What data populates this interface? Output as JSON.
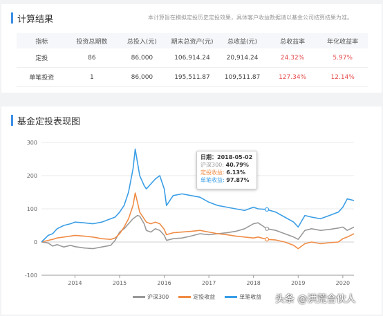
{
  "results": {
    "title": "计算结果",
    "disclaimer": "本计算旨在模拟定投历史定投效果，具体客户收益数据请以基金公司结算结果为准。",
    "columns": [
      "指标",
      "投资总期数",
      "总投入(元)",
      "期末总资产(元)",
      "总收益(元)",
      "总收益率",
      "年化收益率"
    ],
    "rows": [
      [
        "定投",
        "86",
        "86,000",
        "106,914.24",
        "20,914.24",
        "24.32%",
        "5.97%"
      ],
      [
        "单笔投资",
        "1",
        "86,000",
        "195,511.87",
        "109,511.87",
        "127.34%",
        "12.14%"
      ]
    ]
  },
  "chart_section": {
    "title": "基金定投表现图"
  },
  "tooltip": {
    "date_label": "日期：",
    "date": "2018-05-02",
    "items": [
      {
        "label": "沪深300:",
        "value": "40.79%",
        "color": "#999999"
      },
      {
        "label": "定投收益:",
        "value": "6.13%",
        "color": "#f08c46"
      },
      {
        "label": "单笔收益:",
        "value": "97.87%",
        "color": "#3a9ee6"
      }
    ]
  },
  "legend": [
    {
      "name": "沪深300",
      "color": "#999999"
    },
    {
      "name": "定投收益",
      "color": "#f08c46"
    },
    {
      "name": "单笔收益",
      "color": "#3a9ee6"
    }
  ],
  "watermark": "头条 @洪荒合伙人",
  "chart_data": {
    "type": "line",
    "title": "基金定投表现图",
    "xlabel": "",
    "ylabel": "",
    "xlim": [
      2013.25,
      2020.25
    ],
    "ylim": [
      -100,
      300
    ],
    "yticks": [
      -100,
      0,
      100,
      200,
      300
    ],
    "xticks": [
      "2014",
      "2015",
      "2016",
      "2017",
      "2018",
      "2019",
      "2020"
    ],
    "xtick_values": [
      2014,
      2015,
      2016,
      2017,
      2018,
      2019,
      2020
    ],
    "grid": "horizontal",
    "legend_position": "bottom",
    "series": [
      {
        "name": "沪深300",
        "color": "#999999",
        "points": [
          [
            2013.25,
            0
          ],
          [
            2013.4,
            -3
          ],
          [
            2013.5,
            -12
          ],
          [
            2013.6,
            -8
          ],
          [
            2013.75,
            -15
          ],
          [
            2013.9,
            -10
          ],
          [
            2014.0,
            -14
          ],
          [
            2014.2,
            -18
          ],
          [
            2014.4,
            -20
          ],
          [
            2014.6,
            -15
          ],
          [
            2014.8,
            -10
          ],
          [
            2014.9,
            5
          ],
          [
            2015.0,
            30
          ],
          [
            2015.1,
            40
          ],
          [
            2015.2,
            55
          ],
          [
            2015.3,
            70
          ],
          [
            2015.4,
            80
          ],
          [
            2015.45,
            78
          ],
          [
            2015.55,
            55
          ],
          [
            2015.6,
            35
          ],
          [
            2015.7,
            30
          ],
          [
            2015.8,
            40
          ],
          [
            2015.9,
            35
          ],
          [
            2016.0,
            20
          ],
          [
            2016.05,
            5
          ],
          [
            2016.2,
            10
          ],
          [
            2016.4,
            12
          ],
          [
            2016.6,
            18
          ],
          [
            2016.8,
            25
          ],
          [
            2017.0,
            22
          ],
          [
            2017.2,
            25
          ],
          [
            2017.4,
            28
          ],
          [
            2017.6,
            32
          ],
          [
            2017.8,
            40
          ],
          [
            2018.0,
            55
          ],
          [
            2018.1,
            58
          ],
          [
            2018.3,
            40
          ],
          [
            2018.5,
            35
          ],
          [
            2018.7,
            25
          ],
          [
            2018.9,
            15
          ],
          [
            2019.0,
            8
          ],
          [
            2019.15,
            35
          ],
          [
            2019.3,
            40
          ],
          [
            2019.5,
            35
          ],
          [
            2019.7,
            38
          ],
          [
            2019.9,
            42
          ],
          [
            2020.0,
            45
          ],
          [
            2020.1,
            35
          ],
          [
            2020.25,
            45
          ]
        ]
      },
      {
        "name": "定投收益",
        "color": "#f08c46",
        "points": [
          [
            2013.25,
            0
          ],
          [
            2013.4,
            5
          ],
          [
            2013.5,
            8
          ],
          [
            2013.6,
            12
          ],
          [
            2013.75,
            15
          ],
          [
            2013.9,
            18
          ],
          [
            2014.0,
            20
          ],
          [
            2014.2,
            18
          ],
          [
            2014.4,
            15
          ],
          [
            2014.6,
            10
          ],
          [
            2014.8,
            8
          ],
          [
            2014.9,
            12
          ],
          [
            2015.0,
            25
          ],
          [
            2015.1,
            45
          ],
          [
            2015.2,
            70
          ],
          [
            2015.3,
            110
          ],
          [
            2015.35,
            148
          ],
          [
            2015.4,
            120
          ],
          [
            2015.45,
            90
          ],
          [
            2015.55,
            70
          ],
          [
            2015.6,
            60
          ],
          [
            2015.7,
            55
          ],
          [
            2015.8,
            60
          ],
          [
            2015.9,
            55
          ],
          [
            2016.0,
            38
          ],
          [
            2016.05,
            22
          ],
          [
            2016.2,
            28
          ],
          [
            2016.4,
            30
          ],
          [
            2016.6,
            32
          ],
          [
            2016.8,
            35
          ],
          [
            2017.0,
            30
          ],
          [
            2017.2,
            25
          ],
          [
            2017.4,
            22
          ],
          [
            2017.6,
            18
          ],
          [
            2017.8,
            15
          ],
          [
            2018.0,
            12
          ],
          [
            2018.1,
            15
          ],
          [
            2018.3,
            8
          ],
          [
            2018.5,
            6
          ],
          [
            2018.7,
            0
          ],
          [
            2018.9,
            -10
          ],
          [
            2019.0,
            -20
          ],
          [
            2019.15,
            -5
          ],
          [
            2019.3,
            0
          ],
          [
            2019.5,
            -5
          ],
          [
            2019.7,
            -2
          ],
          [
            2019.9,
            0
          ],
          [
            2020.0,
            10
          ],
          [
            2020.1,
            15
          ],
          [
            2020.25,
            25
          ]
        ]
      },
      {
        "name": "单笔收益",
        "color": "#3a9ee6",
        "points": [
          [
            2013.25,
            0
          ],
          [
            2013.4,
            20
          ],
          [
            2013.5,
            25
          ],
          [
            2013.6,
            40
          ],
          [
            2013.75,
            50
          ],
          [
            2013.9,
            55
          ],
          [
            2014.0,
            60
          ],
          [
            2014.2,
            58
          ],
          [
            2014.4,
            55
          ],
          [
            2014.6,
            60
          ],
          [
            2014.8,
            70
          ],
          [
            2014.9,
            75
          ],
          [
            2015.0,
            90
          ],
          [
            2015.1,
            110
          ],
          [
            2015.2,
            150
          ],
          [
            2015.3,
            220
          ],
          [
            2015.35,
            280
          ],
          [
            2015.4,
            240
          ],
          [
            2015.45,
            200
          ],
          [
            2015.55,
            170
          ],
          [
            2015.6,
            160
          ],
          [
            2015.7,
            175
          ],
          [
            2015.8,
            190
          ],
          [
            2015.9,
            200
          ],
          [
            2016.0,
            160
          ],
          [
            2016.05,
            110
          ],
          [
            2016.2,
            140
          ],
          [
            2016.4,
            145
          ],
          [
            2016.6,
            140
          ],
          [
            2016.8,
            135
          ],
          [
            2017.0,
            120
          ],
          [
            2017.2,
            110
          ],
          [
            2017.4,
            105
          ],
          [
            2017.6,
            100
          ],
          [
            2017.8,
            95
          ],
          [
            2018.0,
            105
          ],
          [
            2018.1,
            100
          ],
          [
            2018.3,
            98
          ],
          [
            2018.5,
            90
          ],
          [
            2018.7,
            75
          ],
          [
            2018.9,
            60
          ],
          [
            2019.0,
            45
          ],
          [
            2019.15,
            80
          ],
          [
            2019.3,
            75
          ],
          [
            2019.5,
            70
          ],
          [
            2019.7,
            80
          ],
          [
            2019.9,
            90
          ],
          [
            2020.0,
            105
          ],
          [
            2020.1,
            130
          ],
          [
            2020.25,
            125
          ]
        ]
      }
    ]
  }
}
